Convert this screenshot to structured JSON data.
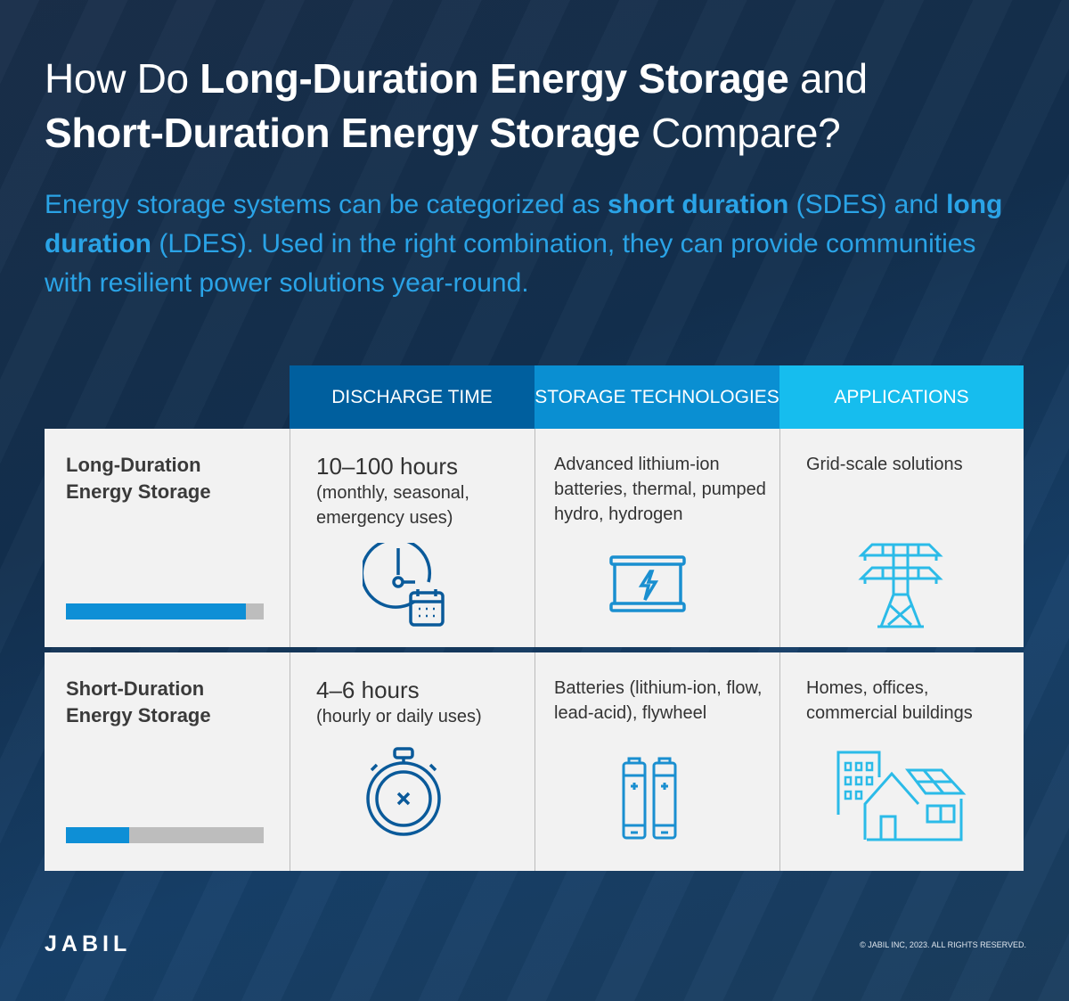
{
  "title": {
    "pre": "How Do ",
    "bold1": "Long-Duration Energy Storage",
    "mid": " and",
    "bold2": "Short-Duration Energy Storage",
    "post": " Compare?"
  },
  "intro": {
    "t1": "Energy storage systems can be categorized as ",
    "b1": "short duration",
    "t2": " (SDES) and ",
    "b2": "long duration",
    "t3": " (LDES). Used in the right combination, they can provide communities with resilient power solutions year-round."
  },
  "columns": [
    "DISCHARGE TIME",
    "STORAGE TECHNOLOGIES",
    "APPLICATIONS"
  ],
  "colors": {
    "col1": "#005f9e",
    "col2": "#0a8fd2",
    "col3": "#16bdee",
    "bar_fill": "#0e8fd6",
    "bar_track": "#bdbdbd"
  },
  "rows": [
    {
      "label1": "Long-Duration",
      "label2": "Energy Storage",
      "duration_fill_fraction": 0.91,
      "discharge_main": "10–100 hours",
      "discharge_detail": "(monthly, seasonal, emergency uses)",
      "technologies": "Advanced lithium-ion batteries, thermal, pumped hydro, hydrogen",
      "applications": "Grid-scale solutions",
      "icons": [
        "clock-calendar-icon",
        "battery-lightning-icon",
        "power-tower-icon"
      ]
    },
    {
      "label1": "Short-Duration",
      "label2": "Energy Storage",
      "duration_fill_fraction": 0.32,
      "discharge_main": "4–6 hours",
      "discharge_detail": "(hourly or daily uses)",
      "technologies": "Batteries (lithium-ion, flow, lead-acid), flywheel",
      "applications": "Homes, offices, commercial buildings",
      "icons": [
        "stopwatch-icon",
        "batteries-icon",
        "house-solar-building-icon"
      ]
    }
  ],
  "footer": {
    "logo": "JABIL",
    "copyright": "© JABIL INC, 2023. ALL RIGHTS RESERVED."
  }
}
